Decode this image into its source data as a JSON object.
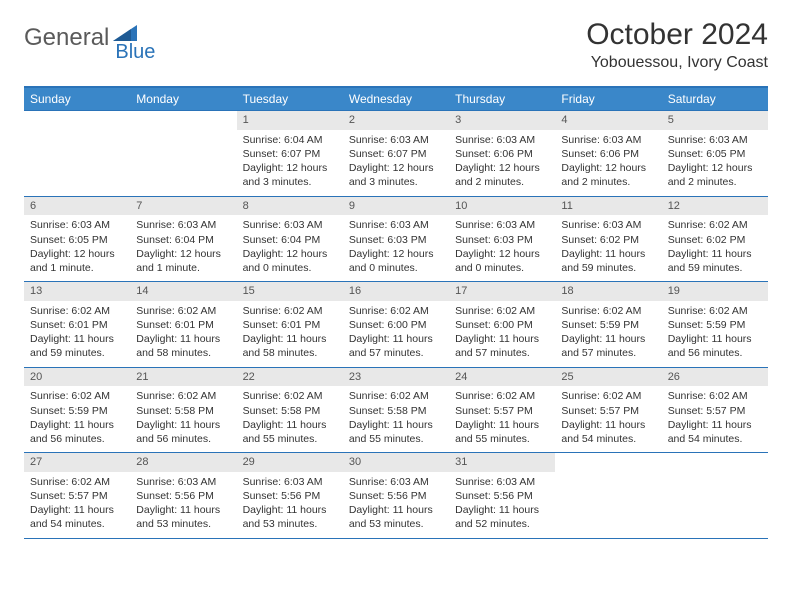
{
  "logo": {
    "text1": "General",
    "text2": "Blue"
  },
  "title": "October 2024",
  "location": "Yobouessou, Ivory Coast",
  "colors": {
    "header_bg": "#3a87c9",
    "border": "#2a73b8",
    "daynum_bg": "#e8e8e8",
    "text": "#333333",
    "logo_gray": "#5a5a5a",
    "logo_blue": "#2a73b8"
  },
  "weekdays": [
    "Sunday",
    "Monday",
    "Tuesday",
    "Wednesday",
    "Thursday",
    "Friday",
    "Saturday"
  ],
  "weeks": [
    [
      {
        "num": "",
        "sunrise": "",
        "sunset": "",
        "daylight": ""
      },
      {
        "num": "",
        "sunrise": "",
        "sunset": "",
        "daylight": ""
      },
      {
        "num": "1",
        "sunrise": "Sunrise: 6:04 AM",
        "sunset": "Sunset: 6:07 PM",
        "daylight": "Daylight: 12 hours and 3 minutes."
      },
      {
        "num": "2",
        "sunrise": "Sunrise: 6:03 AM",
        "sunset": "Sunset: 6:07 PM",
        "daylight": "Daylight: 12 hours and 3 minutes."
      },
      {
        "num": "3",
        "sunrise": "Sunrise: 6:03 AM",
        "sunset": "Sunset: 6:06 PM",
        "daylight": "Daylight: 12 hours and 2 minutes."
      },
      {
        "num": "4",
        "sunrise": "Sunrise: 6:03 AM",
        "sunset": "Sunset: 6:06 PM",
        "daylight": "Daylight: 12 hours and 2 minutes."
      },
      {
        "num": "5",
        "sunrise": "Sunrise: 6:03 AM",
        "sunset": "Sunset: 6:05 PM",
        "daylight": "Daylight: 12 hours and 2 minutes."
      }
    ],
    [
      {
        "num": "6",
        "sunrise": "Sunrise: 6:03 AM",
        "sunset": "Sunset: 6:05 PM",
        "daylight": "Daylight: 12 hours and 1 minute."
      },
      {
        "num": "7",
        "sunrise": "Sunrise: 6:03 AM",
        "sunset": "Sunset: 6:04 PM",
        "daylight": "Daylight: 12 hours and 1 minute."
      },
      {
        "num": "8",
        "sunrise": "Sunrise: 6:03 AM",
        "sunset": "Sunset: 6:04 PM",
        "daylight": "Daylight: 12 hours and 0 minutes."
      },
      {
        "num": "9",
        "sunrise": "Sunrise: 6:03 AM",
        "sunset": "Sunset: 6:03 PM",
        "daylight": "Daylight: 12 hours and 0 minutes."
      },
      {
        "num": "10",
        "sunrise": "Sunrise: 6:03 AM",
        "sunset": "Sunset: 6:03 PM",
        "daylight": "Daylight: 12 hours and 0 minutes."
      },
      {
        "num": "11",
        "sunrise": "Sunrise: 6:03 AM",
        "sunset": "Sunset: 6:02 PM",
        "daylight": "Daylight: 11 hours and 59 minutes."
      },
      {
        "num": "12",
        "sunrise": "Sunrise: 6:02 AM",
        "sunset": "Sunset: 6:02 PM",
        "daylight": "Daylight: 11 hours and 59 minutes."
      }
    ],
    [
      {
        "num": "13",
        "sunrise": "Sunrise: 6:02 AM",
        "sunset": "Sunset: 6:01 PM",
        "daylight": "Daylight: 11 hours and 59 minutes."
      },
      {
        "num": "14",
        "sunrise": "Sunrise: 6:02 AM",
        "sunset": "Sunset: 6:01 PM",
        "daylight": "Daylight: 11 hours and 58 minutes."
      },
      {
        "num": "15",
        "sunrise": "Sunrise: 6:02 AM",
        "sunset": "Sunset: 6:01 PM",
        "daylight": "Daylight: 11 hours and 58 minutes."
      },
      {
        "num": "16",
        "sunrise": "Sunrise: 6:02 AM",
        "sunset": "Sunset: 6:00 PM",
        "daylight": "Daylight: 11 hours and 57 minutes."
      },
      {
        "num": "17",
        "sunrise": "Sunrise: 6:02 AM",
        "sunset": "Sunset: 6:00 PM",
        "daylight": "Daylight: 11 hours and 57 minutes."
      },
      {
        "num": "18",
        "sunrise": "Sunrise: 6:02 AM",
        "sunset": "Sunset: 5:59 PM",
        "daylight": "Daylight: 11 hours and 57 minutes."
      },
      {
        "num": "19",
        "sunrise": "Sunrise: 6:02 AM",
        "sunset": "Sunset: 5:59 PM",
        "daylight": "Daylight: 11 hours and 56 minutes."
      }
    ],
    [
      {
        "num": "20",
        "sunrise": "Sunrise: 6:02 AM",
        "sunset": "Sunset: 5:59 PM",
        "daylight": "Daylight: 11 hours and 56 minutes."
      },
      {
        "num": "21",
        "sunrise": "Sunrise: 6:02 AM",
        "sunset": "Sunset: 5:58 PM",
        "daylight": "Daylight: 11 hours and 56 minutes."
      },
      {
        "num": "22",
        "sunrise": "Sunrise: 6:02 AM",
        "sunset": "Sunset: 5:58 PM",
        "daylight": "Daylight: 11 hours and 55 minutes."
      },
      {
        "num": "23",
        "sunrise": "Sunrise: 6:02 AM",
        "sunset": "Sunset: 5:58 PM",
        "daylight": "Daylight: 11 hours and 55 minutes."
      },
      {
        "num": "24",
        "sunrise": "Sunrise: 6:02 AM",
        "sunset": "Sunset: 5:57 PM",
        "daylight": "Daylight: 11 hours and 55 minutes."
      },
      {
        "num": "25",
        "sunrise": "Sunrise: 6:02 AM",
        "sunset": "Sunset: 5:57 PM",
        "daylight": "Daylight: 11 hours and 54 minutes."
      },
      {
        "num": "26",
        "sunrise": "Sunrise: 6:02 AM",
        "sunset": "Sunset: 5:57 PM",
        "daylight": "Daylight: 11 hours and 54 minutes."
      }
    ],
    [
      {
        "num": "27",
        "sunrise": "Sunrise: 6:02 AM",
        "sunset": "Sunset: 5:57 PM",
        "daylight": "Daylight: 11 hours and 54 minutes."
      },
      {
        "num": "28",
        "sunrise": "Sunrise: 6:03 AM",
        "sunset": "Sunset: 5:56 PM",
        "daylight": "Daylight: 11 hours and 53 minutes."
      },
      {
        "num": "29",
        "sunrise": "Sunrise: 6:03 AM",
        "sunset": "Sunset: 5:56 PM",
        "daylight": "Daylight: 11 hours and 53 minutes."
      },
      {
        "num": "30",
        "sunrise": "Sunrise: 6:03 AM",
        "sunset": "Sunset: 5:56 PM",
        "daylight": "Daylight: 11 hours and 53 minutes."
      },
      {
        "num": "31",
        "sunrise": "Sunrise: 6:03 AM",
        "sunset": "Sunset: 5:56 PM",
        "daylight": "Daylight: 11 hours and 52 minutes."
      },
      {
        "num": "",
        "sunrise": "",
        "sunset": "",
        "daylight": ""
      },
      {
        "num": "",
        "sunrise": "",
        "sunset": "",
        "daylight": ""
      }
    ]
  ]
}
